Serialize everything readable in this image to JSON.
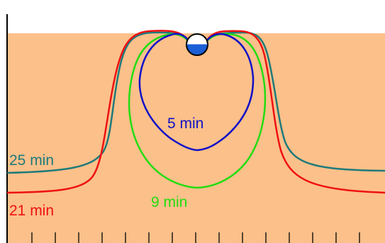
{
  "colors": {
    "background": "#ffffff",
    "medium": "#fcc08a",
    "axis": "#000000",
    "curve_5min": "#1010c8",
    "curve_9min": "#22dd11",
    "curve_21min": "#ee1111",
    "curve_25min": "#1f7a7a",
    "drop_top": "#ffffff",
    "drop_bottom": "#1a5fd6"
  },
  "curves": [
    {
      "id": "5min",
      "label": "5 min"
    },
    {
      "id": "9min",
      "label": "9 min"
    },
    {
      "id": "21min",
      "label": "21 min"
    },
    {
      "id": "25min",
      "label": "25 min"
    }
  ],
  "icons": {
    "droplet": "droplet-icon"
  }
}
